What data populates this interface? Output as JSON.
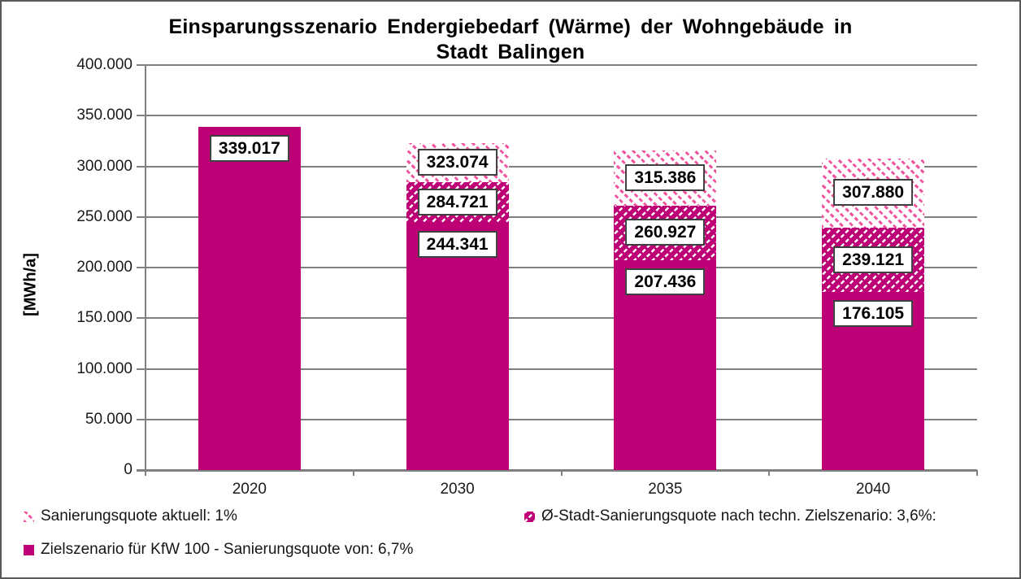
{
  "chart_data": {
    "type": "bar",
    "stacked_overlay": true,
    "title": "Einsparungsszenario Endergiebedarf (Wärme) der Wohngebäude in Stadt Balingen",
    "title_lines": [
      "Einsparungsszenario Endergiebedarf (Wärme) der Wohngebäude in",
      "Stadt Balingen"
    ],
    "ylabel": "[MWh/a]",
    "ylim": [
      0,
      400000
    ],
    "ytick_step": 50000,
    "ytick_labels": [
      "0",
      "50.000",
      "100.000",
      "150.000",
      "200.000",
      "250.000",
      "300.000",
      "350.000",
      "400.000"
    ],
    "categories": [
      "2020",
      "2030",
      "2035",
      "2040"
    ],
    "series": [
      {
        "name": "Zielszenario für KfW 100 - Sanierungsquote von: 6,7%",
        "pattern": "solid",
        "totals": [
          339017,
          244341,
          207436,
          176105
        ],
        "labels": [
          "339.017",
          "244.341",
          "207.436",
          "176.105"
        ]
      },
      {
        "name": "Ø-Stadt-Sanierungsquote nach techn. Zielszenario: 3,6%:",
        "pattern": "dense-hatch",
        "totals": [
          null,
          284721,
          260927,
          239121
        ],
        "labels": [
          null,
          "284.721",
          "260.927",
          "239.121"
        ]
      },
      {
        "name": "Sanierungsquote aktuell: 1%",
        "pattern": "light-hatch",
        "totals": [
          null,
          323074,
          315386,
          307880
        ],
        "labels": [
          null,
          "323.074",
          "315.386",
          "307.880"
        ]
      }
    ],
    "legend": [
      {
        "label": "Sanierungsquote aktuell: 1%",
        "pattern": "light-hatch"
      },
      {
        "label": "Ø-Stadt-Sanierungsquote nach techn. Zielszenario: 3,6%:",
        "pattern": "dense-hatch"
      },
      {
        "label": "Zielszenario für KfW 100 - Sanierungsquote von: 6,7%",
        "pattern": "solid"
      }
    ],
    "legend_position": "bottom",
    "grid": true,
    "colors": {
      "solid_magenta": "#BE0076",
      "hatch_pink": "#F2559F",
      "axis_gray": "#7F7F7F"
    }
  }
}
